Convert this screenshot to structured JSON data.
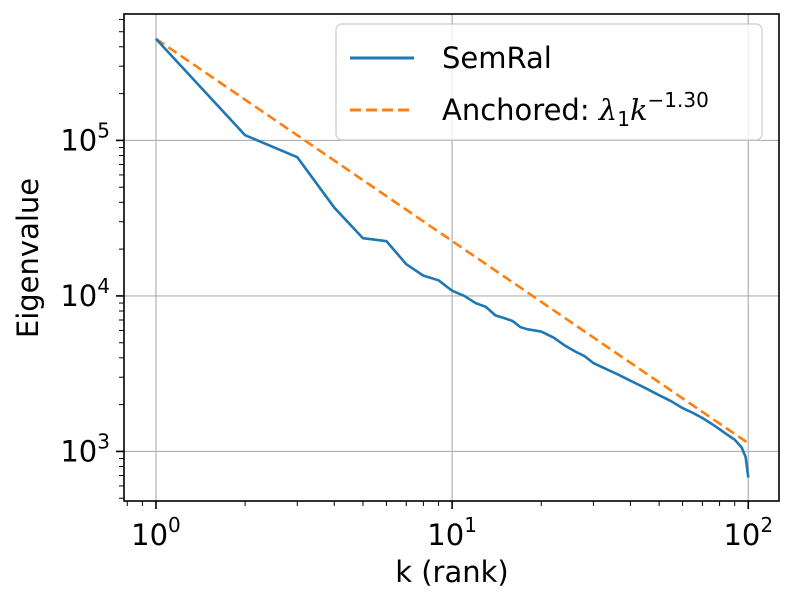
{
  "chart_data": {
    "type": "line",
    "title": "",
    "xlabel": "k (rank)",
    "ylabel": "Eigenvalue",
    "xscale": "log",
    "yscale": "log",
    "xlim": [
      0.78,
      127
    ],
    "ylim": [
      480,
      650000
    ],
    "grid": true,
    "legend_position": "top-right",
    "x_ticks": [
      {
        "value": 1,
        "base": "10",
        "exp": "0"
      },
      {
        "value": 10,
        "base": "10",
        "exp": "1"
      },
      {
        "value": 100,
        "base": "10",
        "exp": "2"
      }
    ],
    "y_ticks": [
      {
        "value": 1000,
        "base": "10",
        "exp": "3"
      },
      {
        "value": 10000,
        "base": "10",
        "exp": "4"
      },
      {
        "value": 100000,
        "base": "10",
        "exp": "5"
      }
    ],
    "series": [
      {
        "name": "SemRal",
        "style": "solid",
        "color": "#1f77b4",
        "points": [
          [
            1,
            450000
          ],
          [
            2,
            108000
          ],
          [
            3,
            78000
          ],
          [
            4,
            37000
          ],
          [
            5,
            23500
          ],
          [
            6,
            22500
          ],
          [
            7,
            16000
          ],
          [
            8,
            13500
          ],
          [
            9,
            12600
          ],
          [
            10,
            10800
          ],
          [
            11,
            10000
          ],
          [
            12,
            9000
          ],
          [
            13,
            8500
          ],
          [
            14,
            7500
          ],
          [
            15,
            7200
          ],
          [
            16,
            6900
          ],
          [
            17,
            6300
          ],
          [
            18,
            6100
          ],
          [
            20,
            5900
          ],
          [
            22,
            5400
          ],
          [
            24,
            4800
          ],
          [
            26,
            4400
          ],
          [
            28,
            4100
          ],
          [
            30,
            3700
          ],
          [
            33,
            3400
          ],
          [
            36,
            3150
          ],
          [
            40,
            2850
          ],
          [
            45,
            2550
          ],
          [
            50,
            2300
          ],
          [
            55,
            2100
          ],
          [
            60,
            1900
          ],
          [
            65,
            1770
          ],
          [
            70,
            1640
          ],
          [
            75,
            1510
          ],
          [
            80,
            1390
          ],
          [
            85,
            1280
          ],
          [
            90,
            1190
          ],
          [
            95,
            1060
          ],
          [
            98,
            920
          ],
          [
            100,
            680
          ]
        ]
      },
      {
        "name": "Anchored: ",
        "name_math": {
          "lambda": "λ",
          "sub": "1",
          "k": "k",
          "sup": "−1.30"
        },
        "style": "dashed",
        "color": "#ff7f0e",
        "lambda1": 450000,
        "exponent": -1.3,
        "points": [
          [
            1,
            450000
          ],
          [
            100,
            1130
          ]
        ]
      }
    ]
  }
}
